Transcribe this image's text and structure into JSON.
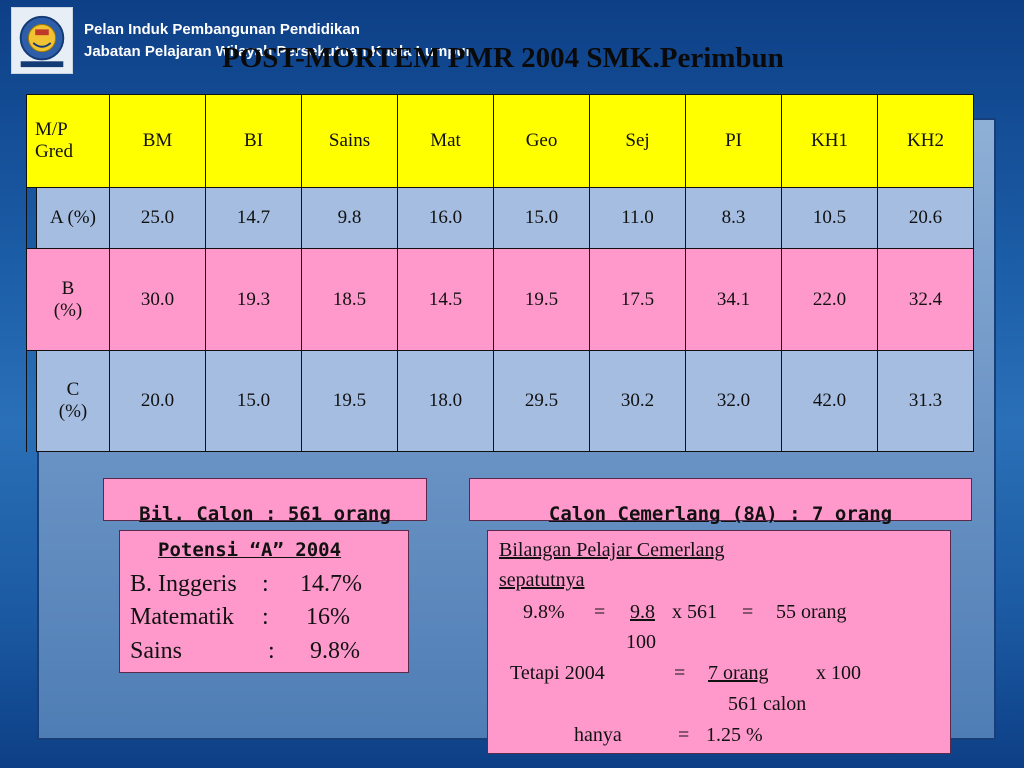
{
  "header": {
    "line1": "Pelan Induk Pembangunan Pendidikan",
    "line2": "Jabatan Pelajaran Wilayah Persekutuan Kuala Lumpur",
    "logo_icon": "crest-logo-icon"
  },
  "title": "POST-MORTEM PMR 2004 SMK.Perimbun",
  "table": {
    "corner_line1": "M/P",
    "corner_line2": "Gred",
    "subjects": [
      "BM",
      "BI",
      "Sains",
      "Mat",
      "Geo",
      "Sej",
      "PI",
      "KH1",
      "KH2"
    ],
    "rows": [
      {
        "label_line1": "A (%)",
        "label_line2": "",
        "values": [
          "25.0",
          "14.7",
          "9.8",
          "16.0",
          "15.0",
          "11.0",
          "8.3",
          "10.5",
          "20.6"
        ]
      },
      {
        "label_line1": "B",
        "label_line2": "(%)",
        "values": [
          "30.0",
          "19.3",
          "18.5",
          "14.5",
          "19.5",
          "17.5",
          "34.1",
          "22.0",
          "32.4"
        ]
      },
      {
        "label_line1": "C",
        "label_line2": "(%)",
        "values": [
          "20.0",
          "15.0",
          "19.5",
          "18.0",
          "29.5",
          "30.2",
          "32.0",
          "42.0",
          "31.3"
        ]
      }
    ]
  },
  "bil_calon": "Bil. Calon :  561 orang",
  "calon_cemerlang": "Calon Cemerlang (8A) :  7 orang",
  "potensi": {
    "title": "Potensi “A” 2004",
    "rows": [
      {
        "subject": "B. Inggeris",
        "sep": ":",
        "value": "14.7%"
      },
      {
        "subject": "Matematik",
        "sep": ":",
        "value": "16%"
      },
      {
        "subject": "Sains",
        "sep": ":",
        "value": "9.8%"
      }
    ]
  },
  "bilangan": {
    "heading1": "Bilangan Pelajar Cemerlang",
    "heading2": "sepatutnya",
    "calc1_pct": "9.8%",
    "calc1_eq": "=",
    "calc1_num": "9.8",
    "calc1_mult": "x 561",
    "calc1_eq2": "=",
    "calc1_result": "55 orang",
    "calc1_den": "100",
    "calc2_label": "Tetapi 2004",
    "calc2_eq": "=",
    "calc2_num": "7 orang",
    "calc2_mult": "x 100",
    "calc2_den": "561 calon",
    "calc3_label": "hanya",
    "calc3_eq": "=",
    "calc3_value": "1.25 %"
  },
  "colors": {
    "header_row": "#ffff00",
    "pink_row": "#ff99cc",
    "blue_row": "#a5bde0",
    "background": "#1c5ea8"
  }
}
